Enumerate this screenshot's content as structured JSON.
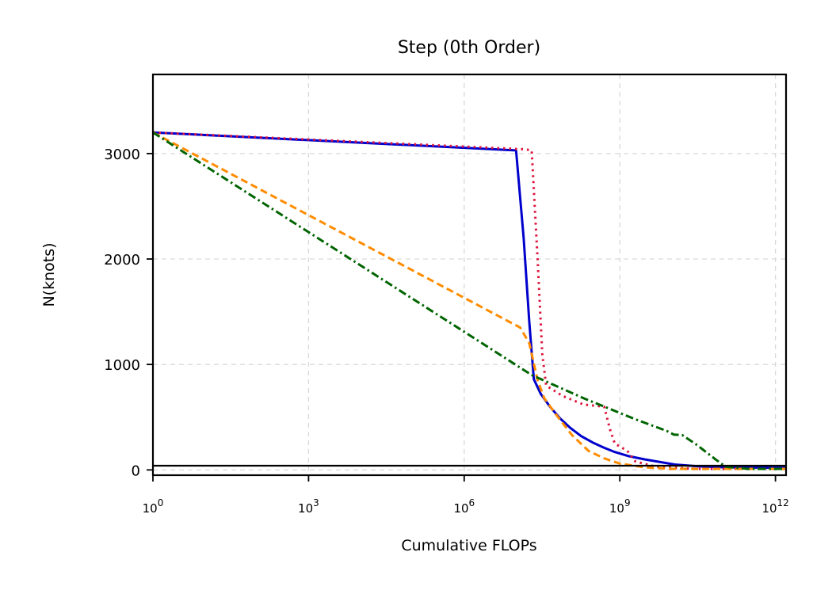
{
  "chart_data": {
    "type": "line",
    "title": "Step (0th Order)",
    "xlabel": "Cumulative FLOPs",
    "ylabel": "N(knots)",
    "xscale": "log10",
    "xlim": [
      1,
      1600000000000.0
    ],
    "ylim": [
      -50,
      3750
    ],
    "grid": true,
    "x_ticks": [
      {
        "value": 1,
        "base": "10",
        "exp": "0"
      },
      {
        "value": 1000,
        "base": "10",
        "exp": "3"
      },
      {
        "value": 1000000,
        "base": "10",
        "exp": "6"
      },
      {
        "value": 1000000000,
        "base": "10",
        "exp": "9"
      },
      {
        "value": 1000000000000,
        "base": "10",
        "exp": "12"
      }
    ],
    "y_ticks": [
      {
        "value": 0,
        "label": "0"
      },
      {
        "value": 1000,
        "label": "1000"
      },
      {
        "value": 2000,
        "label": "2000"
      },
      {
        "value": 3000,
        "label": "3000"
      }
    ],
    "hline": {
      "y": 40,
      "color": "#000000"
    },
    "series": [
      {
        "color": "#0000cc",
        "dash": "solid",
        "points": [
          [
            1,
            3200
          ],
          [
            10000000.0,
            3030
          ],
          [
            14000000.0,
            2200
          ],
          [
            18000000.0,
            1400
          ],
          [
            22000000.0,
            860
          ],
          [
            30000000.0,
            720
          ],
          [
            45000000.0,
            600
          ],
          [
            70000000.0,
            490
          ],
          [
            110000000.0,
            400
          ],
          [
            180000000.0,
            320
          ],
          [
            300000000.0,
            260
          ],
          [
            500000000.0,
            210
          ],
          [
            800000000.0,
            170
          ],
          [
            1500000000.0,
            130
          ],
          [
            3000000000.0,
            100
          ],
          [
            6000000000.0,
            75
          ],
          [
            12000000000.0,
            50
          ],
          [
            30000000000.0,
            35
          ],
          [
            100000000000.0,
            25
          ],
          [
            1000000000000.0,
            20
          ],
          [
            1600000000000.0,
            20
          ]
        ]
      },
      {
        "color": "#dc143c",
        "dash": "dotted",
        "points": [
          [
            1,
            3200
          ],
          [
            15000000.0,
            3040
          ],
          [
            20000000.0,
            3030
          ],
          [
            26000000.0,
            2000
          ],
          [
            32000000.0,
            1100
          ],
          [
            38000000.0,
            800
          ],
          [
            80000000.0,
            700
          ],
          [
            200000000.0,
            620
          ],
          [
            500000000.0,
            600
          ],
          [
            650000000.0,
            380
          ],
          [
            800000000.0,
            250
          ],
          [
            1400000000.0,
            180
          ],
          [
            2000000000.0,
            80
          ],
          [
            5000000000.0,
            30
          ],
          [
            30000000000.0,
            10
          ],
          [
            200000000000.0,
            10
          ],
          [
            1600000000000.0,
            10
          ]
        ]
      },
      {
        "color": "#ff8c00",
        "dash": "dashed",
        "points": [
          [
            1,
            3200
          ],
          [
            12000000.0,
            1350
          ],
          [
            18000000.0,
            1200
          ],
          [
            26000000.0,
            850
          ],
          [
            35000000.0,
            680
          ],
          [
            60000000.0,
            520
          ],
          [
            120000000.0,
            330
          ],
          [
            250000000.0,
            180
          ],
          [
            500000000.0,
            110
          ],
          [
            1000000000.0,
            60
          ],
          [
            3000000000.0,
            25
          ],
          [
            10000000000.0,
            10
          ],
          [
            50000000000.0,
            10
          ],
          [
            1600000000000.0,
            10
          ]
        ]
      },
      {
        "color": "#006400",
        "dash": "dashdot",
        "points": [
          [
            1,
            3200
          ],
          [
            20000000.0,
            900
          ],
          [
            200000000.0,
            680
          ],
          [
            2000000000.0,
            480
          ],
          [
            8000000000.0,
            370
          ],
          [
            11000000000.0,
            335
          ],
          [
            16000000000.0,
            330
          ],
          [
            30000000000.0,
            240
          ],
          [
            70000000000.0,
            100
          ],
          [
            110000000000.0,
            30
          ],
          [
            300000000000.0,
            10
          ],
          [
            1600000000000.0,
            10
          ]
        ]
      }
    ]
  }
}
